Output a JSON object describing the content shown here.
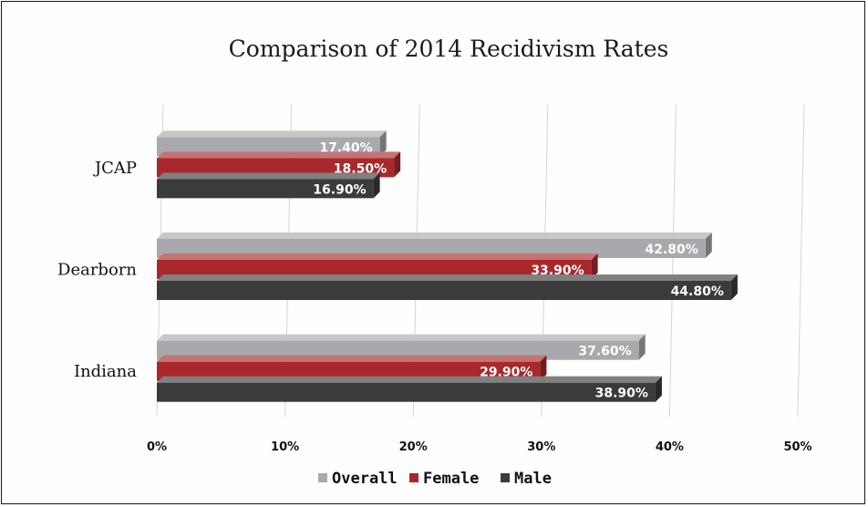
{
  "chart_data": {
    "type": "bar",
    "orientation": "horizontal",
    "title": "Comparison of 2014 Recidivism Rates",
    "categories": [
      "JCAP",
      "Dearborn",
      "Indiana"
    ],
    "series": [
      {
        "name": "Overall",
        "values": [
          17.4,
          42.8,
          37.6
        ],
        "labels": [
          "17.40%",
          "42.80%",
          "37.60%"
        ],
        "color": "#a9a9ad"
      },
      {
        "name": "Female",
        "values": [
          18.5,
          33.9,
          29.9
        ],
        "labels": [
          "18.50%",
          "33.90%",
          "29.90%"
        ],
        "color": "#a8282c"
      },
      {
        "name": "Male",
        "values": [
          16.9,
          44.8,
          38.9
        ],
        "labels": [
          "16.90%",
          "44.80%",
          "38.90%"
        ],
        "color": "#3b3b3d"
      }
    ],
    "xlim": [
      0,
      50
    ],
    "ticks": [
      0,
      10,
      20,
      30,
      40,
      50
    ],
    "tick_labels": [
      "0%",
      "10%",
      "20%",
      "30%",
      "40%",
      "50%"
    ],
    "xlabel": "",
    "ylabel": "",
    "grid": true,
    "legend_position": "bottom",
    "style": "3d"
  }
}
